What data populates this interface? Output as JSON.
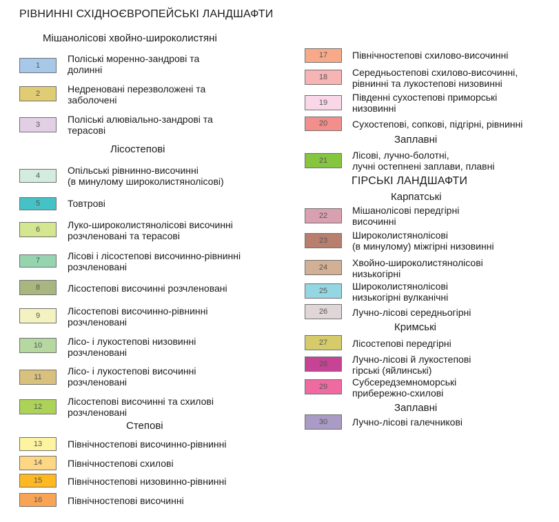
{
  "title": "РІВНИННІ СХІДНОЄВРОПЕЙСЬКІ ЛАНДШАФТИ",
  "mountain_title": "ГІРСЬКІ ЛАНДШАФТИ",
  "headings": {
    "mixed": "Мішанолісові хвойно-широколистяні",
    "foreststeppe": "Лісостепові",
    "steppe": "Степові",
    "floodplain_plain": "Заплавні",
    "carpathian": "Карпатські",
    "crimean": "Кримські",
    "floodplain_mountain": "Заплавні"
  },
  "legend": [
    {
      "num": "1",
      "color": "#a8c8ea",
      "text": "Поліські моренно-зандрові та долинні"
    },
    {
      "num": "2",
      "color": "#e0cc72",
      "text": "Недреновані перезволожені та заболочені"
    },
    {
      "num": "3",
      "color": "#e2cfe6",
      "text": "Поліські алювіально-зандрові та терасові"
    },
    {
      "num": "4",
      "color": "#d3ecdf",
      "text": "Опільські рівнинно-височинні (в минулому широколистянолісові)"
    },
    {
      "num": "5",
      "color": "#45c2c6",
      "text": "Товтрові"
    },
    {
      "num": "6",
      "color": "#d4e68f",
      "text": "Луко-широколистянолісові височинні розчленовані та терасові"
    },
    {
      "num": "7",
      "color": "#96d4b0",
      "text": "Лісові і лісостепові височинно-рівнинні розчленовані"
    },
    {
      "num": "8",
      "color": "#a9b67f",
      "text": "Лісостепові височинні розчленовані"
    },
    {
      "num": "9",
      "color": "#f3f2c0",
      "text": "Лісостепові височинно-рівнинні розчленовані"
    },
    {
      "num": "10",
      "color": "#b4d8a0",
      "text": "Лісо- і лукостепові низовинні розчленовані"
    },
    {
      "num": "11",
      "color": "#d8c17e",
      "text": "Лісо- і лукостепові височинні розчленовані"
    },
    {
      "num": "12",
      "color": "#acd257",
      "text": "Лісостепові височинні та схилові розчленовані"
    },
    {
      "num": "13",
      "color": "#fdf4a0",
      "text": "Північностепові височинно-рівнинні"
    },
    {
      "num": "14",
      "color": "#fed784",
      "text": "Північностепові схилові"
    },
    {
      "num": "15",
      "color": "#fdb822",
      "text": "Північностепові низовинно-рівнинні"
    },
    {
      "num": "16",
      "color": "#f9a354",
      "text": "Північностепові височинні"
    },
    {
      "num": "17",
      "color": "#f7a98a",
      "text": "Північностепові схилово-височинні"
    },
    {
      "num": "18",
      "color": "#f6b4b4",
      "text": "Середньостепові схилово-височинні, рівнинні та лукостепові низовинні"
    },
    {
      "num": "19",
      "color": "#f9d6e8",
      "text": "Південні сухостепові приморські низовинні"
    },
    {
      "num": "20",
      "color": "#f28e8c",
      "text": "Сухостепові, сопкові, підгірні, рівнинні"
    },
    {
      "num": "21",
      "color": "#86c540",
      "text": "Лісові, лучно-болотні, лучні остепнені заплави, плавні"
    },
    {
      "num": "22",
      "color": "#d9a0b0",
      "text": "Мішанолісові передгірні височинні"
    },
    {
      "num": "23",
      "color": "#b97f6e",
      "text": "Широколистянолісові (в минулому) міжгірні низовинні"
    },
    {
      "num": "24",
      "color": "#d2b095",
      "text": "Хвойно-широколистянолісові низькогірні"
    },
    {
      "num": "25",
      "color": "#94d7e3",
      "text": "Широколистянолісові низькогірні вулканічні"
    },
    {
      "num": "26",
      "color": "#e0d6d8",
      "text": "Лучно-лісові середньогірні"
    },
    {
      "num": "27",
      "color": "#d6cb6a",
      "text": "Лісостепові передгірні"
    },
    {
      "num": "28",
      "color": "#c74395",
      "text": "Лучно-лісові й лукостепові гірські (яйлинські)"
    },
    {
      "num": "29",
      "color": "#f06aa2",
      "text": "Субсередземноморські прибережно-схилові"
    },
    {
      "num": "30",
      "color": "#a99ac6",
      "text": "Лучно-лісові галечникові"
    }
  ]
}
